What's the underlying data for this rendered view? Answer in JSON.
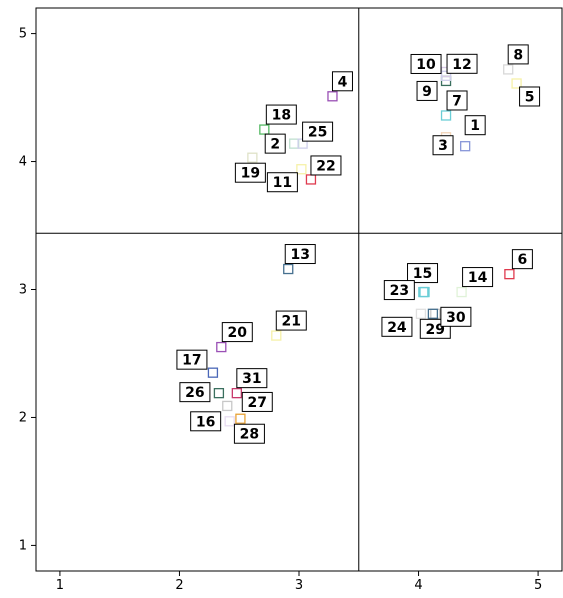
{
  "chart_data": {
    "type": "scatter",
    "title": "",
    "xlabel": "",
    "ylabel": "",
    "xlim": [
      0.8,
      5.2
    ],
    "ylim": [
      0.8,
      5.2
    ],
    "x_ticks": [
      1,
      2,
      3,
      4,
      5
    ],
    "y_ticks": [
      1,
      2,
      3,
      4,
      5
    ],
    "grid": false,
    "dividers": {
      "x": 3.5,
      "y": 3.44
    },
    "points": [
      {
        "label": "1",
        "x": 4.39,
        "y": 4.12,
        "color": "#8896d8",
        "label_dx": 10,
        "label_dy": -21
      },
      {
        "label": "2",
        "x": 2.96,
        "y": 4.14,
        "color": "#bfe0cf",
        "label_dx": -19,
        "label_dy": 0
      },
      {
        "label": "3",
        "x": 4.23,
        "y": 4.19,
        "color": "#f2d5b8",
        "label_dx": -3,
        "label_dy": 8
      },
      {
        "label": "4",
        "x": 3.28,
        "y": 4.51,
        "color": "#9a50b5",
        "label_dx": 10,
        "label_dy": -15
      },
      {
        "label": "5",
        "x": 4.82,
        "y": 4.61,
        "color": "#f6f1a8",
        "label_dx": 13,
        "label_dy": 13
      },
      {
        "label": "6",
        "x": 4.76,
        "y": 3.12,
        "color": "#df3a4e",
        "label_dx": 13,
        "label_dy": -15
      },
      {
        "label": "7",
        "x": 4.23,
        "y": 4.36,
        "color": "#6acdd6",
        "label_dx": 11,
        "label_dy": -15
      },
      {
        "label": "8",
        "x": 4.75,
        "y": 4.72,
        "color": "#d8d8d8",
        "label_dx": 10,
        "label_dy": -15
      },
      {
        "label": "9",
        "x": 4.23,
        "y": 4.63,
        "color": "#3a6f5e",
        "label_dx": -19,
        "label_dy": 10
      },
      {
        "label": "10",
        "x": 4.23,
        "y": 4.7,
        "color": "#d9cbe7",
        "label_dx": -20,
        "label_dy": -8
      },
      {
        "label": "11",
        "x": 3.02,
        "y": 3.94,
        "color": "#f6f1a8",
        "label_dx": -19,
        "label_dy": 13
      },
      {
        "label": "12",
        "x": 4.23,
        "y": 4.67,
        "color": "#cfcfeb",
        "label_dx": 16,
        "label_dy": -12
      },
      {
        "label": "13",
        "x": 2.91,
        "y": 3.16,
        "color": "#46708f",
        "label_dx": 12,
        "label_dy": -15
      },
      {
        "label": "14",
        "x": 4.36,
        "y": 2.98,
        "color": "#e0f2d8",
        "label_dx": 16,
        "label_dy": -15
      },
      {
        "label": "15",
        "x": 4.05,
        "y": 2.98,
        "color": "#6acdd6",
        "label_dx": -2,
        "label_dy": -19
      },
      {
        "label": "16",
        "x": 2.42,
        "y": 1.97,
        "color": "#e8dcf1",
        "label_dx": -24,
        "label_dy": 0
      },
      {
        "label": "17",
        "x": 2.28,
        "y": 2.35,
        "color": "#4a67b8",
        "label_dx": -21,
        "label_dy": -13
      },
      {
        "label": "18",
        "x": 2.71,
        "y": 4.25,
        "color": "#55b964",
        "label_dx": 17,
        "label_dy": -15
      },
      {
        "label": "19",
        "x": 2.61,
        "y": 4.03,
        "color": "#dfe2c7",
        "label_dx": -2,
        "label_dy": 15
      },
      {
        "label": "20",
        "x": 2.35,
        "y": 2.55,
        "color": "#9a50b5",
        "label_dx": 16,
        "label_dy": -15
      },
      {
        "label": "21",
        "x": 2.81,
        "y": 2.64,
        "color": "#f6f1a8",
        "label_dx": 15,
        "label_dy": -15
      },
      {
        "label": "22",
        "x": 3.1,
        "y": 3.86,
        "color": "#df3a4e",
        "label_dx": 15,
        "label_dy": -14
      },
      {
        "label": "23",
        "x": 4.04,
        "y": 2.98,
        "color": "#6acdd6",
        "label_dx": -24,
        "label_dy": -2
      },
      {
        "label": "24",
        "x": 4.02,
        "y": 2.81,
        "color": "#e0e0e0",
        "label_dx": -24,
        "label_dy": 13
      },
      {
        "label": "25",
        "x": 3.03,
        "y": 4.14,
        "color": "#cfcfeb",
        "label_dx": 15,
        "label_dy": -12
      },
      {
        "label": "26",
        "x": 2.33,
        "y": 2.19,
        "color": "#3a6f5e",
        "label_dx": -24,
        "label_dy": -1
      },
      {
        "label": "27",
        "x": 2.4,
        "y": 2.09,
        "color": "#c8c8c8",
        "label_dx": 30,
        "label_dy": -4
      },
      {
        "label": "28",
        "x": 2.51,
        "y": 1.99,
        "color": "#e8a235",
        "label_dx": 9,
        "label_dy": 15
      },
      {
        "label": "29",
        "x": 4.14,
        "y": 2.81,
        "color": "#c8c8c8",
        "label_dx": 0,
        "label_dy": 15
      },
      {
        "label": "30",
        "x": 4.12,
        "y": 2.81,
        "color": "#46708f",
        "label_dx": 23,
        "label_dy": 3
      },
      {
        "label": "31",
        "x": 2.48,
        "y": 2.19,
        "color": "#c8396b",
        "label_dx": 15,
        "label_dy": -15
      }
    ]
  }
}
